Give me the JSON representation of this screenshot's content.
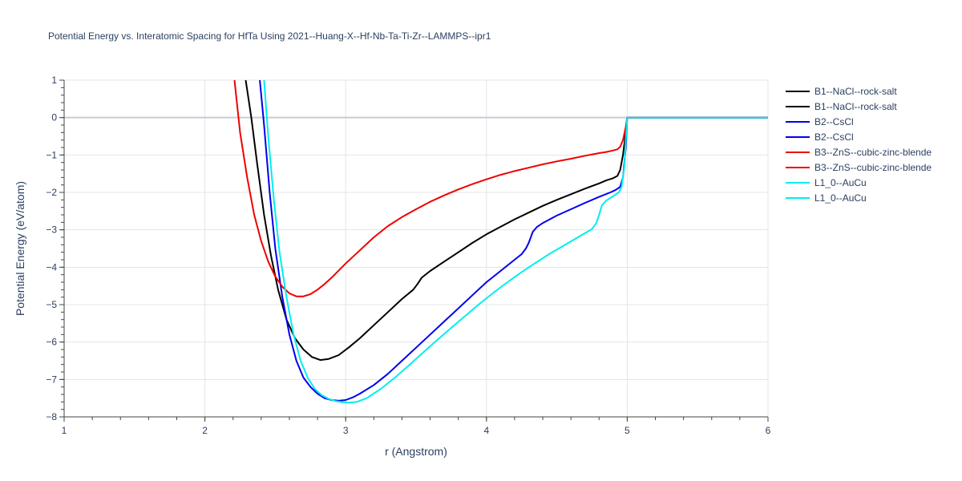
{
  "chart_data": {
    "type": "line",
    "title": "Potential Energy vs. Interatomic Spacing for HfTa Using 2021--Huang-X--Hf-Nb-Ta-Ti-Zr--LAMMPS--ipr1",
    "xlabel": "r (Angstrom)",
    "ylabel": "Potential Energy (eV/atom)",
    "xlim": [
      1,
      6
    ],
    "ylim": [
      -8,
      1
    ],
    "x_ticks": [
      1,
      2,
      3,
      4,
      5,
      6
    ],
    "y_ticks": [
      1,
      0,
      -1,
      -2,
      -3,
      -4,
      -5,
      -6,
      -7,
      -8
    ],
    "x_tick_labels": [
      "1",
      "2",
      "3",
      "4",
      "5",
      "6"
    ],
    "y_tick_labels": [
      "1",
      "0",
      "−1",
      "−2",
      "−3",
      "−4",
      "−5",
      "−6",
      "−7",
      "−8"
    ],
    "grid": true,
    "legend_position": "right",
    "series": [
      {
        "name": "B1--NaCl--rock-salt",
        "color": "#000000",
        "x": [
          2.29,
          2.33,
          2.37,
          2.42,
          2.47,
          2.52,
          2.58,
          2.64,
          2.7,
          2.76,
          2.82,
          2.88,
          2.95,
          3.02,
          3.1,
          3.2,
          3.3,
          3.4,
          3.48,
          3.51,
          3.54,
          3.6,
          3.7,
          3.8,
          3.9,
          4.0,
          4.1,
          4.2,
          4.3,
          4.4,
          4.5,
          4.6,
          4.7,
          4.8,
          4.85,
          4.9,
          4.93,
          4.95,
          4.97,
          4.99,
          5.0,
          5.5,
          6.0
        ],
        "y": [
          1.0,
          0.0,
          -1.2,
          -2.6,
          -3.7,
          -4.6,
          -5.4,
          -5.9,
          -6.2,
          -6.4,
          -6.48,
          -6.45,
          -6.35,
          -6.15,
          -5.9,
          -5.55,
          -5.2,
          -4.85,
          -4.6,
          -4.45,
          -4.28,
          -4.1,
          -3.85,
          -3.6,
          -3.35,
          -3.12,
          -2.92,
          -2.72,
          -2.54,
          -2.36,
          -2.2,
          -2.05,
          -1.9,
          -1.76,
          -1.68,
          -1.62,
          -1.56,
          -1.4,
          -1.0,
          -0.4,
          0.0,
          0.0,
          0.0
        ]
      },
      {
        "name": "B1--NaCl--rock-salt",
        "color": "#000000",
        "x": [],
        "y": []
      },
      {
        "name": "B2--CsCl",
        "color": "#0000ee",
        "x": [
          2.39,
          2.42,
          2.46,
          2.5,
          2.55,
          2.6,
          2.65,
          2.7,
          2.75,
          2.8,
          2.85,
          2.9,
          2.95,
          3.0,
          3.05,
          3.1,
          3.2,
          3.3,
          3.4,
          3.5,
          3.6,
          3.7,
          3.8,
          3.9,
          4.0,
          4.1,
          4.2,
          4.25,
          4.28,
          4.3,
          4.33,
          4.36,
          4.4,
          4.5,
          4.6,
          4.7,
          4.8,
          4.88,
          4.92,
          4.95,
          4.97,
          4.99,
          5.0,
          5.5,
          6.0
        ],
        "y": [
          1.0,
          -0.2,
          -2.0,
          -3.5,
          -4.8,
          -5.8,
          -6.5,
          -6.95,
          -7.2,
          -7.38,
          -7.5,
          -7.55,
          -7.57,
          -7.55,
          -7.48,
          -7.38,
          -7.15,
          -6.85,
          -6.5,
          -6.15,
          -5.8,
          -5.45,
          -5.1,
          -4.75,
          -4.4,
          -4.1,
          -3.8,
          -3.65,
          -3.5,
          -3.35,
          -3.05,
          -2.92,
          -2.82,
          -2.62,
          -2.45,
          -2.28,
          -2.12,
          -2.0,
          -1.93,
          -1.85,
          -1.6,
          -0.8,
          0.0,
          0.0,
          0.0
        ]
      },
      {
        "name": "B2--CsCl",
        "color": "#0000ee",
        "x": [],
        "y": []
      },
      {
        "name": "B3--ZnS--cubic-zinc-blende",
        "color": "#ee0000",
        "x": [
          2.21,
          2.25,
          2.3,
          2.35,
          2.4,
          2.45,
          2.5,
          2.55,
          2.6,
          2.65,
          2.7,
          2.75,
          2.8,
          2.85,
          2.9,
          3.0,
          3.1,
          3.2,
          3.3,
          3.4,
          3.5,
          3.6,
          3.7,
          3.8,
          3.9,
          4.0,
          4.1,
          4.2,
          4.3,
          4.4,
          4.5,
          4.6,
          4.7,
          4.8,
          4.85,
          4.9,
          4.93,
          4.95,
          4.97,
          4.99,
          5.0,
          5.5,
          6.0
        ],
        "y": [
          1.0,
          -0.4,
          -1.6,
          -2.6,
          -3.3,
          -3.85,
          -4.25,
          -4.52,
          -4.7,
          -4.78,
          -4.78,
          -4.72,
          -4.6,
          -4.45,
          -4.28,
          -3.9,
          -3.55,
          -3.2,
          -2.9,
          -2.66,
          -2.45,
          -2.25,
          -2.08,
          -1.92,
          -1.78,
          -1.65,
          -1.53,
          -1.43,
          -1.34,
          -1.25,
          -1.17,
          -1.1,
          -1.02,
          -0.95,
          -0.92,
          -0.88,
          -0.85,
          -0.78,
          -0.6,
          -0.25,
          0.0,
          0.0,
          0.0
        ]
      },
      {
        "name": "B3--ZnS--cubic-zinc-blende",
        "color": "#ee0000",
        "x": [],
        "y": []
      },
      {
        "name": "L1_0--AuCu",
        "color": "#00eeee",
        "x": [
          2.42,
          2.45,
          2.49,
          2.53,
          2.58,
          2.63,
          2.68,
          2.73,
          2.78,
          2.83,
          2.88,
          2.93,
          2.98,
          3.03,
          3.08,
          3.15,
          3.25,
          3.35,
          3.45,
          3.55,
          3.65,
          3.75,
          3.85,
          3.95,
          4.05,
          4.15,
          4.25,
          4.35,
          4.45,
          4.55,
          4.65,
          4.75,
          4.78,
          4.8,
          4.82,
          4.85,
          4.9,
          4.94,
          4.96,
          4.98,
          4.99,
          5.0,
          5.5,
          6.0
        ],
        "y": [
          1.0,
          -0.5,
          -2.2,
          -3.6,
          -4.8,
          -5.8,
          -6.5,
          -6.95,
          -7.25,
          -7.42,
          -7.52,
          -7.58,
          -7.61,
          -7.62,
          -7.6,
          -7.5,
          -7.25,
          -6.95,
          -6.62,
          -6.28,
          -5.95,
          -5.62,
          -5.3,
          -4.98,
          -4.68,
          -4.4,
          -4.13,
          -3.88,
          -3.64,
          -3.42,
          -3.2,
          -2.98,
          -2.82,
          -2.6,
          -2.35,
          -2.22,
          -2.1,
          -2.0,
          -1.85,
          -1.3,
          -0.6,
          0.0,
          0.0,
          0.0
        ]
      },
      {
        "name": "L1_0--AuCu",
        "color": "#00eeee",
        "x": [],
        "y": []
      }
    ]
  }
}
